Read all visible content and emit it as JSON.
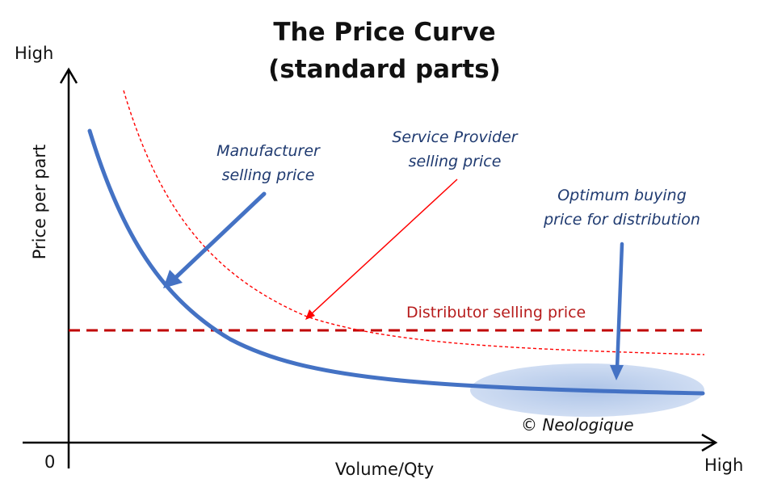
{
  "title": {
    "line1": "The Price Curve",
    "line2": "(standard parts)"
  },
  "axes": {
    "y_high": "High",
    "y_title": "Price per part",
    "origin": "0",
    "x_title": "Volume/Qty",
    "x_high": "High"
  },
  "annotations": {
    "manufacturer": {
      "line1": "Manufacturer",
      "line2": "selling price"
    },
    "service_provider": {
      "line1": "Service Provider",
      "line2": "selling price"
    },
    "optimum": {
      "line1": "Optimum buying",
      "line2": "price for distribution"
    },
    "distributor": "Distributor selling price",
    "copyright": "© Neologique"
  },
  "colors": {
    "manufacturer_curve": "#4472c4",
    "service_curve": "#ff0000",
    "distributor_line": "#c00000",
    "annotation_text": "#1f3a70",
    "optimum_region": "#a9c1e6"
  }
}
